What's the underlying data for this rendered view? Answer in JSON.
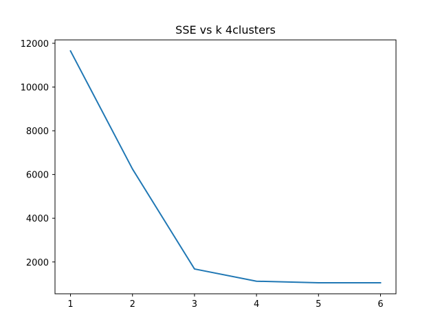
{
  "chart_data": {
    "type": "line",
    "title": "SSE vs k 4clusters",
    "xlabel": "",
    "ylabel": "",
    "x": [
      1,
      2,
      3,
      4,
      5,
      6
    ],
    "series": [
      {
        "values": [
          11650,
          6250,
          1680,
          1120,
          1050,
          1050
        ],
        "color": "#1f77b4"
      }
    ],
    "xlim": [
      0.75,
      6.25
    ],
    "ylim": [
      545,
      12155
    ],
    "xticks": [
      1,
      2,
      3,
      4,
      5,
      6
    ],
    "yticks": [
      2000,
      4000,
      6000,
      8000,
      10000,
      12000
    ],
    "grid": false,
    "legend": "none"
  }
}
